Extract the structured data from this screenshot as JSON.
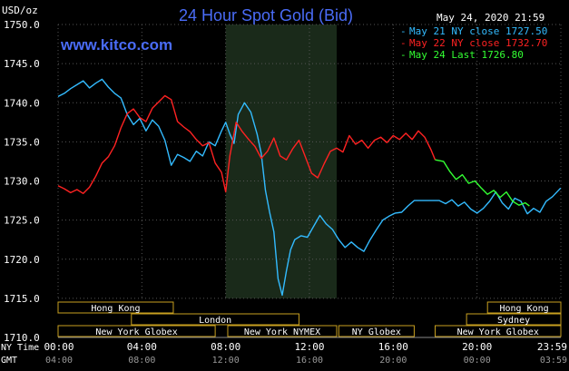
{
  "chart_data": {
    "type": "line",
    "title": "24 Hour Spot Gold (Bid)",
    "ylabel": "USD/oz",
    "watermark": "www.kitco.com",
    "timestamp": "May 24, 2020 21:59",
    "ylim": [
      1710,
      1750
    ],
    "yticks": [
      "1750.0",
      "1745.0",
      "1740.0",
      "1735.0",
      "1730.0",
      "1725.0",
      "1720.0",
      "1715.0",
      "1710.0"
    ],
    "xlim": [
      0,
      24
    ],
    "x_ticks_ny": [
      "00:00",
      "04:00",
      "08:00",
      "12:00",
      "16:00",
      "20:00",
      "23:59"
    ],
    "x_ticks_gmt": [
      "04:00",
      "08:00",
      "12:00",
      "16:00",
      "20:00",
      "00:00",
      "03:59"
    ],
    "x_axis_row_labels": [
      "NY Time",
      "GMT"
    ],
    "shaded_range": [
      8,
      13.3
    ],
    "legend_position": "top-right",
    "series": [
      {
        "name": "May 21 NY close 1727.50",
        "color": "#33bbff",
        "x": [
          0,
          0.3,
          0.6,
          0.9,
          1.2,
          1.5,
          1.8,
          2.1,
          2.4,
          2.7,
          3.0,
          3.3,
          3.6,
          3.9,
          4.2,
          4.5,
          4.8,
          5.1,
          5.4,
          5.7,
          6.0,
          6.3,
          6.6,
          6.9,
          7.2,
          7.5,
          7.8,
          8.0,
          8.2,
          8.4,
          8.6,
          8.9,
          9.2,
          9.5,
          9.7,
          9.9,
          10.1,
          10.3,
          10.5,
          10.7,
          10.9,
          11.1,
          11.3,
          11.6,
          11.9,
          12.2,
          12.5,
          12.8,
          13.1,
          13.4,
          13.7,
          14.0,
          14.3,
          14.6,
          14.9,
          15.2,
          15.5,
          15.8,
          16.1,
          16.4,
          16.7,
          17.0,
          17.3,
          17.6,
          17.9,
          18.2,
          18.5,
          18.8,
          19.1,
          19.4,
          19.7,
          20.0,
          20.3,
          20.6,
          20.9,
          21.2,
          21.5,
          21.8,
          22.1,
          22.4,
          22.7,
          23.0,
          23.3,
          23.6,
          23.99
        ],
        "values": [
          1740.8,
          1741.2,
          1741.8,
          1742.3,
          1742.8,
          1741.9,
          1742.5,
          1743.0,
          1742.0,
          1741.2,
          1740.6,
          1738.5,
          1737.2,
          1738.0,
          1736.4,
          1737.8,
          1737.0,
          1735.2,
          1732.0,
          1733.4,
          1733.0,
          1732.5,
          1733.8,
          1733.2,
          1735.0,
          1734.5,
          1736.4,
          1737.5,
          1736.0,
          1734.8,
          1738.5,
          1740.0,
          1738.8,
          1736.0,
          1733.5,
          1728.8,
          1726.0,
          1723.5,
          1717.5,
          1715.4,
          1718.5,
          1721.2,
          1722.5,
          1723.0,
          1722.8,
          1724.2,
          1725.6,
          1724.5,
          1723.8,
          1722.5,
          1721.5,
          1722.2,
          1721.5,
          1721.0,
          1722.5,
          1723.8,
          1725.0,
          1725.5,
          1725.9,
          1726.0,
          1726.8,
          1727.5,
          1727.5,
          1727.5,
          1727.5,
          1727.5,
          1727.1,
          1727.6,
          1726.8,
          1727.3,
          1726.4,
          1725.9,
          1726.5,
          1727.4,
          1728.6,
          1727.2,
          1726.4,
          1727.8,
          1727.4,
          1725.8,
          1726.5,
          1726.0,
          1727.4,
          1728.0,
          1729.1
        ]
      },
      {
        "name": "May 22 NY close 1732.70",
        "color": "#ff2222",
        "x": [
          0,
          0.3,
          0.6,
          0.9,
          1.2,
          1.5,
          1.8,
          2.1,
          2.4,
          2.7,
          3.0,
          3.3,
          3.6,
          3.9,
          4.2,
          4.5,
          4.8,
          5.1,
          5.4,
          5.7,
          6.0,
          6.3,
          6.6,
          6.9,
          7.2,
          7.5,
          7.8,
          8.0,
          8.2,
          8.5,
          8.8,
          9.1,
          9.4,
          9.7,
          10.0,
          10.3,
          10.6,
          10.9,
          11.2,
          11.5,
          11.8,
          12.1,
          12.4,
          12.7,
          13.0,
          13.3,
          13.6,
          13.9,
          14.2,
          14.5,
          14.8,
          15.1,
          15.4,
          15.7,
          16.0,
          16.3,
          16.6,
          16.9,
          17.2,
          17.5,
          17.8,
          18.0
        ],
        "values": [
          1729.4,
          1729.0,
          1728.5,
          1728.9,
          1728.4,
          1729.2,
          1730.6,
          1732.3,
          1733.1,
          1734.5,
          1736.8,
          1738.6,
          1739.2,
          1738.1,
          1737.6,
          1739.3,
          1740.1,
          1740.9,
          1740.4,
          1737.6,
          1736.9,
          1736.3,
          1735.3,
          1734.5,
          1734.9,
          1732.3,
          1731.1,
          1728.6,
          1733.2,
          1737.5,
          1736.3,
          1735.3,
          1734.4,
          1732.9,
          1733.8,
          1735.5,
          1733.2,
          1732.7,
          1734.1,
          1735.2,
          1733.1,
          1731.0,
          1730.4,
          1732.2,
          1733.8,
          1734.2,
          1733.7,
          1735.8,
          1734.7,
          1735.2,
          1734.2,
          1735.2,
          1735.6,
          1734.9,
          1735.8,
          1735.3,
          1736.1,
          1735.3,
          1736.4,
          1735.6,
          1734.0,
          1732.7
        ]
      },
      {
        "name": "May 24 Last 1726.80",
        "color": "#33ff33",
        "x": [
          18.0,
          18.4,
          18.7,
          19.0,
          19.3,
          19.6,
          19.9,
          20.2,
          20.5,
          20.8,
          21.1,
          21.4,
          21.7,
          22.0,
          22.3,
          22.5
        ],
        "values": [
          1732.7,
          1732.5,
          1731.2,
          1730.2,
          1730.8,
          1729.7,
          1730.0,
          1729.1,
          1728.3,
          1728.8,
          1727.9,
          1728.6,
          1727.4,
          1726.9,
          1727.2,
          1726.8
        ]
      }
    ],
    "sessions_row1": [
      {
        "label": "Hong Kong",
        "start": 0,
        "end": 5.5
      },
      {
        "label": "Hong Kong",
        "start": 20.5,
        "end": 24
      }
    ],
    "sessions_row2": [
      {
        "label": "London",
        "start": 3.5,
        "end": 11.5
      },
      {
        "label": "Sydney",
        "start": 19.5,
        "end": 24
      }
    ],
    "sessions_row3": [
      {
        "label": "New York Globex",
        "start": 0,
        "end": 7.5
      },
      {
        "label": "New York NYMEX",
        "start": 8.1,
        "end": 13.3
      },
      {
        "label": "NY Globex",
        "start": 13.4,
        "end": 17.0
      },
      {
        "label": "New York Globex",
        "start": 18.0,
        "end": 24
      }
    ]
  }
}
